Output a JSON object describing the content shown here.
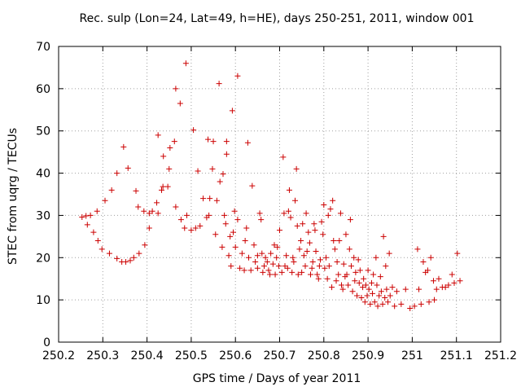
{
  "chart_data": {
    "type": "scatter",
    "title": "Rec. sulp (Lon=24, Lat=49, h=HE), days 250-251, 2011, window 001",
    "xlabel": "GPS time / Days of year 2011",
    "ylabel": "STEC from uqrg / TECUs",
    "xlim": [
      250.2,
      251.2
    ],
    "ylim": [
      0,
      70
    ],
    "xticks": [
      "250.2",
      "250.3",
      "250.4",
      "250.5",
      "250.6",
      "250.7",
      "250.8",
      "250.9",
      "251",
      "251.1",
      "251.2"
    ],
    "yticks": [
      "0",
      "10",
      "20",
      "30",
      "40",
      "50",
      "60",
      "70"
    ],
    "grid": true,
    "marker": "+",
    "color": "#cc0000",
    "series": [
      {
        "points": [
          [
            250.253,
            29.6
          ],
          [
            250.262,
            29.9
          ],
          [
            250.265,
            27.8
          ],
          [
            250.272,
            30.0
          ],
          [
            250.279,
            26.0
          ],
          [
            250.287,
            31.0
          ],
          [
            250.289,
            24.0
          ],
          [
            250.298,
            22.0
          ],
          [
            250.305,
            33.5
          ],
          [
            250.315,
            21.0
          ],
          [
            250.32,
            36.0
          ],
          [
            250.332,
            40.0
          ],
          [
            250.332,
            19.8
          ],
          [
            250.343,
            19.0
          ],
          [
            250.347,
            46.2
          ],
          [
            250.352,
            19.0
          ],
          [
            250.357,
            41.2
          ],
          [
            250.362,
            19.3
          ],
          [
            250.37,
            20.0
          ],
          [
            250.375,
            35.8
          ],
          [
            250.38,
            32.0
          ],
          [
            250.382,
            21.0
          ],
          [
            250.393,
            31.0
          ],
          [
            250.395,
            23.0
          ],
          [
            250.405,
            30.5
          ],
          [
            250.405,
            27.0
          ],
          [
            250.412,
            31.0
          ],
          [
            250.422,
            33.0
          ],
          [
            250.425,
            30.5
          ],
          [
            250.425,
            49.0
          ],
          [
            250.433,
            36.0
          ],
          [
            250.436,
            36.8
          ],
          [
            250.437,
            44.0
          ],
          [
            250.447,
            36.8
          ],
          [
            250.45,
            41.0
          ],
          [
            250.452,
            46.0
          ],
          [
            250.462,
            47.5
          ],
          [
            250.465,
            60.0
          ],
          [
            250.465,
            32.0
          ],
          [
            250.475,
            56.5
          ],
          [
            250.477,
            29.0
          ],
          [
            250.485,
            27.0
          ],
          [
            250.488,
            66.0
          ],
          [
            250.49,
            30.0
          ],
          [
            250.5,
            26.5
          ],
          [
            250.505,
            50.2
          ],
          [
            250.51,
            27.0
          ],
          [
            250.515,
            40.5
          ],
          [
            250.52,
            27.5
          ],
          [
            250.527,
            34.0
          ],
          [
            250.535,
            29.5
          ],
          [
            250.538,
            48.0
          ],
          [
            250.54,
            30.0
          ],
          [
            250.542,
            34.0
          ],
          [
            250.548,
            41.0
          ],
          [
            250.55,
            47.5
          ],
          [
            250.555,
            25.5
          ],
          [
            250.558,
            33.5
          ],
          [
            250.563,
            61.2
          ],
          [
            250.565,
            38.0
          ],
          [
            250.57,
            22.5
          ],
          [
            250.572,
            39.8
          ],
          [
            250.575,
            30.0
          ],
          [
            250.578,
            28.0
          ],
          [
            250.58,
            47.5
          ],
          [
            250.58,
            44.5
          ],
          [
            250.585,
            20.5
          ],
          [
            250.588,
            25.0
          ],
          [
            250.59,
            18.0
          ],
          [
            250.593,
            54.8
          ],
          [
            250.595,
            26.0
          ],
          [
            250.598,
            31.0
          ],
          [
            250.6,
            22.5
          ],
          [
            250.605,
            63.0
          ],
          [
            250.605,
            29.0
          ],
          [
            250.61,
            17.5
          ],
          [
            250.615,
            21.0
          ],
          [
            250.62,
            17.0
          ],
          [
            250.622,
            24.0
          ],
          [
            250.625,
            27.0
          ],
          [
            250.628,
            47.2
          ],
          [
            250.63,
            20.0
          ],
          [
            250.635,
            17.0
          ],
          [
            250.638,
            37.0
          ],
          [
            250.642,
            23.0
          ],
          [
            250.645,
            19.0
          ],
          [
            250.65,
            20.5
          ],
          [
            250.65,
            17.5
          ],
          [
            250.655,
            30.5
          ],
          [
            250.658,
            29.0
          ],
          [
            250.66,
            21.0
          ],
          [
            250.662,
            16.5
          ],
          [
            250.665,
            18.0
          ],
          [
            250.668,
            20.0
          ],
          [
            250.672,
            19.0
          ],
          [
            250.675,
            17.0
          ],
          [
            250.678,
            16.0
          ],
          [
            250.68,
            21.0
          ],
          [
            250.685,
            18.5
          ],
          [
            250.688,
            23.0
          ],
          [
            250.69,
            16.0
          ],
          [
            250.693,
            20.0
          ],
          [
            250.695,
            22.5
          ],
          [
            250.698,
            18.0
          ],
          [
            250.7,
            26.5
          ],
          [
            250.705,
            16.5
          ],
          [
            250.708,
            43.8
          ],
          [
            250.71,
            30.5
          ],
          [
            250.712,
            18.0
          ],
          [
            250.715,
            20.5
          ],
          [
            250.718,
            17.5
          ],
          [
            250.72,
            31.0
          ],
          [
            250.722,
            36.0
          ],
          [
            250.725,
            29.5
          ],
          [
            250.728,
            16.5
          ],
          [
            250.73,
            20.0
          ],
          [
            250.732,
            19.0
          ],
          [
            250.735,
            33.5
          ],
          [
            250.738,
            41.0
          ],
          [
            250.74,
            27.5
          ],
          [
            250.742,
            16.0
          ],
          [
            250.745,
            22.0
          ],
          [
            250.748,
            24.0
          ],
          [
            250.75,
            16.5
          ],
          [
            250.752,
            28.0
          ],
          [
            250.755,
            20.5
          ],
          [
            250.758,
            18.0
          ],
          [
            250.76,
            30.5
          ],
          [
            250.762,
            21.5
          ],
          [
            250.765,
            26.0
          ],
          [
            250.768,
            23.5
          ],
          [
            250.77,
            16.0
          ],
          [
            250.773,
            17.5
          ],
          [
            250.775,
            19.0
          ],
          [
            250.778,
            28.0
          ],
          [
            250.78,
            26.5
          ],
          [
            250.782,
            21.5
          ],
          [
            250.785,
            16.0
          ],
          [
            250.788,
            15.0
          ],
          [
            250.79,
            18.0
          ],
          [
            250.792,
            19.5
          ],
          [
            250.795,
            28.5
          ],
          [
            250.798,
            25.5
          ],
          [
            250.8,
            32.5
          ],
          [
            250.802,
            17.5
          ],
          [
            250.805,
            20.0
          ],
          [
            250.808,
            15.0
          ],
          [
            250.81,
            30.0
          ],
          [
            250.812,
            18.0
          ],
          [
            250.815,
            31.5
          ],
          [
            250.818,
            13.0
          ],
          [
            250.82,
            33.5
          ],
          [
            250.822,
            24.0
          ],
          [
            250.825,
            22.0
          ],
          [
            250.828,
            14.5
          ],
          [
            250.83,
            19.0
          ],
          [
            250.833,
            16.0
          ],
          [
            250.835,
            24.0
          ],
          [
            250.838,
            30.5
          ],
          [
            250.84,
            13.5
          ],
          [
            250.843,
            12.5
          ],
          [
            250.845,
            18.5
          ],
          [
            250.848,
            15.5
          ],
          [
            250.85,
            25.5
          ],
          [
            250.852,
            16.0
          ],
          [
            250.855,
            13.5
          ],
          [
            250.858,
            22.0
          ],
          [
            250.86,
            29.0
          ],
          [
            250.862,
            18.0
          ],
          [
            250.865,
            12.0
          ],
          [
            250.868,
            20.0
          ],
          [
            250.87,
            14.5
          ],
          [
            250.872,
            16.5
          ],
          [
            250.875,
            11.0
          ],
          [
            250.878,
            19.5
          ],
          [
            250.88,
            14.0
          ],
          [
            250.882,
            17.0
          ],
          [
            250.885,
            10.5
          ],
          [
            250.888,
            13.0
          ],
          [
            250.89,
            15.0
          ],
          [
            250.893,
            9.5
          ],
          [
            250.895,
            13.5
          ],
          [
            250.898,
            11.0
          ],
          [
            250.9,
            17.0
          ],
          [
            250.902,
            12.5
          ],
          [
            250.905,
            9.0
          ],
          [
            250.908,
            14.0
          ],
          [
            250.91,
            11.5
          ],
          [
            250.912,
            16.0
          ],
          [
            250.915,
            9.5
          ],
          [
            250.918,
            20.0
          ],
          [
            250.92,
            13.5
          ],
          [
            250.922,
            8.5
          ],
          [
            250.925,
            11.0
          ],
          [
            250.928,
            15.5
          ],
          [
            250.93,
            12.0
          ],
          [
            250.933,
            9.0
          ],
          [
            250.935,
            25.0
          ],
          [
            250.938,
            10.5
          ],
          [
            250.94,
            18.0
          ],
          [
            250.942,
            12.5
          ],
          [
            250.945,
            9.5
          ],
          [
            250.948,
            21.0
          ],
          [
            250.95,
            11.0
          ],
          [
            250.955,
            13.0
          ],
          [
            250.96,
            8.5
          ],
          [
            250.965,
            12.0
          ],
          [
            250.975,
            9.0
          ],
          [
            250.985,
            12.5
          ],
          [
            250.995,
            8.0
          ],
          [
            251.005,
            8.5
          ],
          [
            251.012,
            22.0
          ],
          [
            251.015,
            12.5
          ],
          [
            251.02,
            9.0
          ],
          [
            251.025,
            19.0
          ],
          [
            251.03,
            16.5
          ],
          [
            251.035,
            17.0
          ],
          [
            251.038,
            9.5
          ],
          [
            251.042,
            20.0
          ],
          [
            251.048,
            14.5
          ],
          [
            251.05,
            10.0
          ],
          [
            251.055,
            12.5
          ],
          [
            251.06,
            15.0
          ],
          [
            251.068,
            13.0
          ],
          [
            251.075,
            13.0
          ],
          [
            251.082,
            13.5
          ],
          [
            251.09,
            16.0
          ],
          [
            251.095,
            14.0
          ],
          [
            251.102,
            21.0
          ],
          [
            251.108,
            14.5
          ]
        ]
      }
    ]
  }
}
